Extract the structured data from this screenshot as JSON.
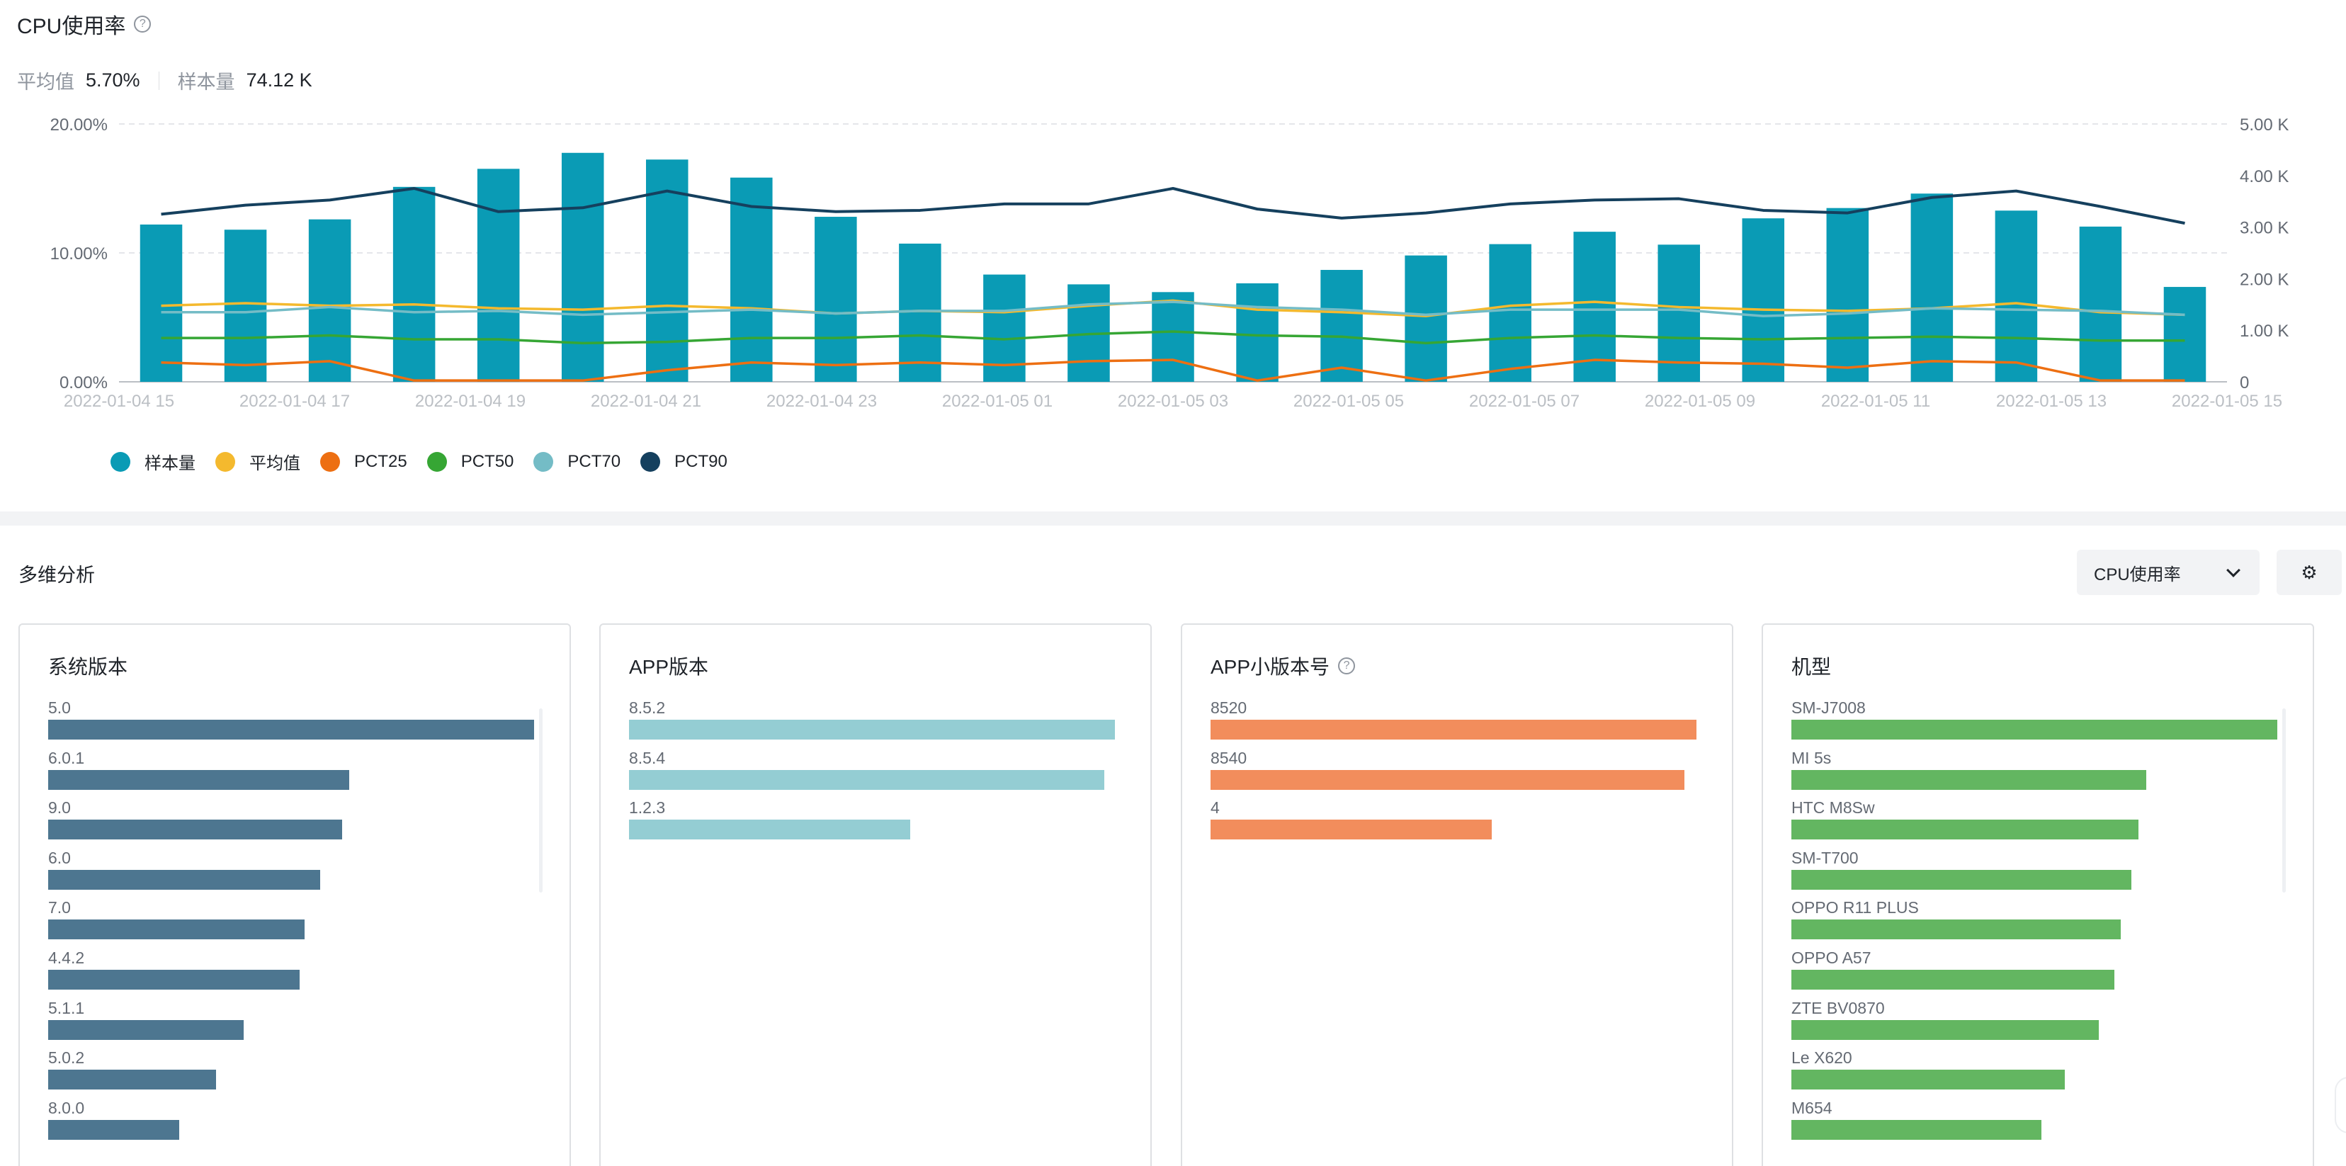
{
  "header": {
    "title": "CPU使用率",
    "help_icon": "?",
    "avg_label": "平均值",
    "avg_value": "5.70%",
    "sample_label": "样本量",
    "sample_value": "74.12 K"
  },
  "chart_data": {
    "type": "bar",
    "y_left_ticks": [
      "20.00%",
      "10.00%",
      "0.00%"
    ],
    "y_right_ticks": [
      "5.00 K",
      "4.00 K",
      "3.00 K",
      "2.00 K",
      "1.00 K",
      "0"
    ],
    "ylim_left": [
      0,
      20
    ],
    "ylim_right": [
      0,
      5000
    ],
    "x_tick_labels": [
      "2022-01-04 15",
      "2022-01-04 17",
      "2022-01-04 19",
      "2022-01-04 21",
      "2022-01-04 23",
      "2022-01-05 01",
      "2022-01-05 03",
      "2022-01-05 05",
      "2022-01-05 07",
      "2022-01-05 09",
      "2022-01-05 11",
      "2022-01-05 13",
      "2022-01-05 15"
    ],
    "grid": true,
    "legend_position": "bottom-left",
    "series": [
      {
        "name": "样本量",
        "type": "bar",
        "axis": "right",
        "color": "#0a9bb5",
        "values": [
          3050,
          2950,
          3150,
          3780,
          4130,
          4440,
          4310,
          3960,
          3200,
          2680,
          2080,
          1890,
          1740,
          1910,
          2170,
          2450,
          2670,
          2910,
          2660,
          3170,
          3370,
          3650,
          3320,
          3010,
          1840
        ]
      },
      {
        "name": "平均值",
        "type": "line",
        "axis": "left",
        "color": "#f4b92e",
        "values": [
          5.9,
          6.1,
          5.9,
          6.0,
          5.7,
          5.6,
          5.9,
          5.7,
          5.3,
          5.5,
          5.4,
          5.9,
          6.3,
          5.6,
          5.4,
          5.1,
          5.9,
          6.2,
          5.8,
          5.6,
          5.5,
          5.7,
          6.1,
          5.4,
          5.2
        ]
      },
      {
        "name": "PCT25",
        "type": "line",
        "axis": "left",
        "color": "#ed6f12",
        "values": [
          1.5,
          1.3,
          1.6,
          0.1,
          0.1,
          0.1,
          0.9,
          1.5,
          1.3,
          1.5,
          1.3,
          1.6,
          1.7,
          0.1,
          1.1,
          0.1,
          1.0,
          1.7,
          1.5,
          1.4,
          1.1,
          1.6,
          1.5,
          0.1,
          0.1
        ]
      },
      {
        "name": "PCT50",
        "type": "line",
        "axis": "left",
        "color": "#36a634",
        "values": [
          3.4,
          3.4,
          3.6,
          3.3,
          3.3,
          3.0,
          3.1,
          3.4,
          3.4,
          3.6,
          3.3,
          3.7,
          3.9,
          3.6,
          3.5,
          3.0,
          3.4,
          3.6,
          3.4,
          3.3,
          3.4,
          3.5,
          3.4,
          3.2,
          3.2
        ]
      },
      {
        "name": "PCT70",
        "type": "line",
        "axis": "left",
        "color": "#74bcc6",
        "values": [
          5.4,
          5.4,
          5.8,
          5.4,
          5.5,
          5.2,
          5.4,
          5.6,
          5.3,
          5.5,
          5.5,
          6.0,
          6.2,
          5.8,
          5.6,
          5.2,
          5.6,
          5.6,
          5.6,
          5.1,
          5.3,
          5.7,
          5.6,
          5.5,
          5.2
        ]
      },
      {
        "name": "PCT90",
        "type": "line",
        "axis": "left",
        "color": "#15405e",
        "values": [
          13.0,
          13.7,
          14.1,
          15.0,
          13.2,
          13.5,
          14.8,
          13.6,
          13.2,
          13.3,
          13.8,
          13.8,
          15.0,
          13.4,
          12.7,
          13.1,
          13.8,
          14.1,
          14.2,
          13.3,
          13.1,
          14.3,
          14.8,
          13.6,
          12.3
        ]
      }
    ]
  },
  "multi": {
    "title": "多维分析",
    "select_value": "CPU使用率",
    "settings_icon": "⚙",
    "cards": [
      {
        "title": "系统版本",
        "has_help": false,
        "color": "#4d7690",
        "has_scroll": true,
        "items": [
          {
            "label": "5.0",
            "value": 1.0
          },
          {
            "label": "6.0.1",
            "value": 0.62
          },
          {
            "label": "9.0",
            "value": 0.605
          },
          {
            "label": "6.0",
            "value": 0.56
          },
          {
            "label": "7.0",
            "value": 0.527
          },
          {
            "label": "4.4.2",
            "value": 0.517
          },
          {
            "label": "5.1.1",
            "value": 0.403
          },
          {
            "label": "5.0.2",
            "value": 0.345
          },
          {
            "label": "8.0.0",
            "value": 0.27
          }
        ]
      },
      {
        "title": "APP版本",
        "has_help": false,
        "color": "#94cdd3",
        "has_scroll": false,
        "items": [
          {
            "label": "8.5.2",
            "value": 1.0
          },
          {
            "label": "8.5.4",
            "value": 0.978
          },
          {
            "label": "1.2.3",
            "value": 0.578
          }
        ]
      },
      {
        "title": "APP小版本号",
        "has_help": true,
        "color": "#f28d5c",
        "has_scroll": false,
        "items": [
          {
            "label": "8520",
            "value": 1.0
          },
          {
            "label": "8540",
            "value": 0.975
          },
          {
            "label": "4",
            "value": 0.578
          }
        ]
      },
      {
        "title": "机型",
        "has_help": false,
        "color": "#63b661",
        "has_scroll": true,
        "items": [
          {
            "label": "SM-J7008",
            "value": 1.0
          },
          {
            "label": "MI 5s",
            "value": 0.73
          },
          {
            "label": "HTC M8Sw",
            "value": 0.715
          },
          {
            "label": "SM-T700",
            "value": 0.7
          },
          {
            "label": "OPPO R11 PLUS",
            "value": 0.678
          },
          {
            "label": "OPPO A57",
            "value": 0.665
          },
          {
            "label": "ZTE BV0870",
            "value": 0.633
          },
          {
            "label": "Le X620",
            "value": 0.562
          },
          {
            "label": "M654",
            "value": 0.515
          }
        ]
      }
    ]
  }
}
